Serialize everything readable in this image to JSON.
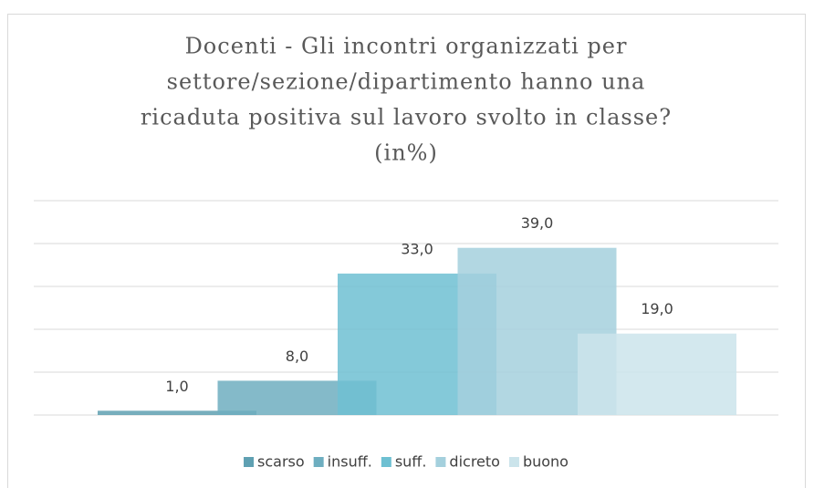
{
  "chart_data": {
    "type": "bar",
    "title": [
      "Docenti -  Gli incontri organizzati per",
      "settore/sezione/dipartimento hanno una",
      "ricaduta positiva sul lavoro svolto in classe?",
      "(in%)"
    ],
    "series": [
      {
        "name": "scarso",
        "color": "#5fa0b2",
        "values": [
          1.0
        ],
        "value_labels": [
          "1,0"
        ]
      },
      {
        "name": "insuff.",
        "color": "#6eaec0",
        "values": [
          8.0
        ],
        "value_labels": [
          "8,0"
        ]
      },
      {
        "name": "suff.",
        "color": "#6ec0d2",
        "values": [
          33.0
        ],
        "value_labels": [
          "33,0"
        ]
      },
      {
        "name": "dicreto",
        "color": "#a4d0dd",
        "values": [
          39.0
        ],
        "value_labels": [
          "39,0"
        ]
      },
      {
        "name": "buono",
        "color": "#cbe4eb",
        "values": [
          19.0
        ],
        "value_labels": [
          "19,0"
        ]
      }
    ],
    "ylim": [
      0,
      50
    ],
    "yticks": [
      0,
      10,
      20,
      30,
      40,
      50
    ],
    "grid": true,
    "legend": "bottom"
  }
}
